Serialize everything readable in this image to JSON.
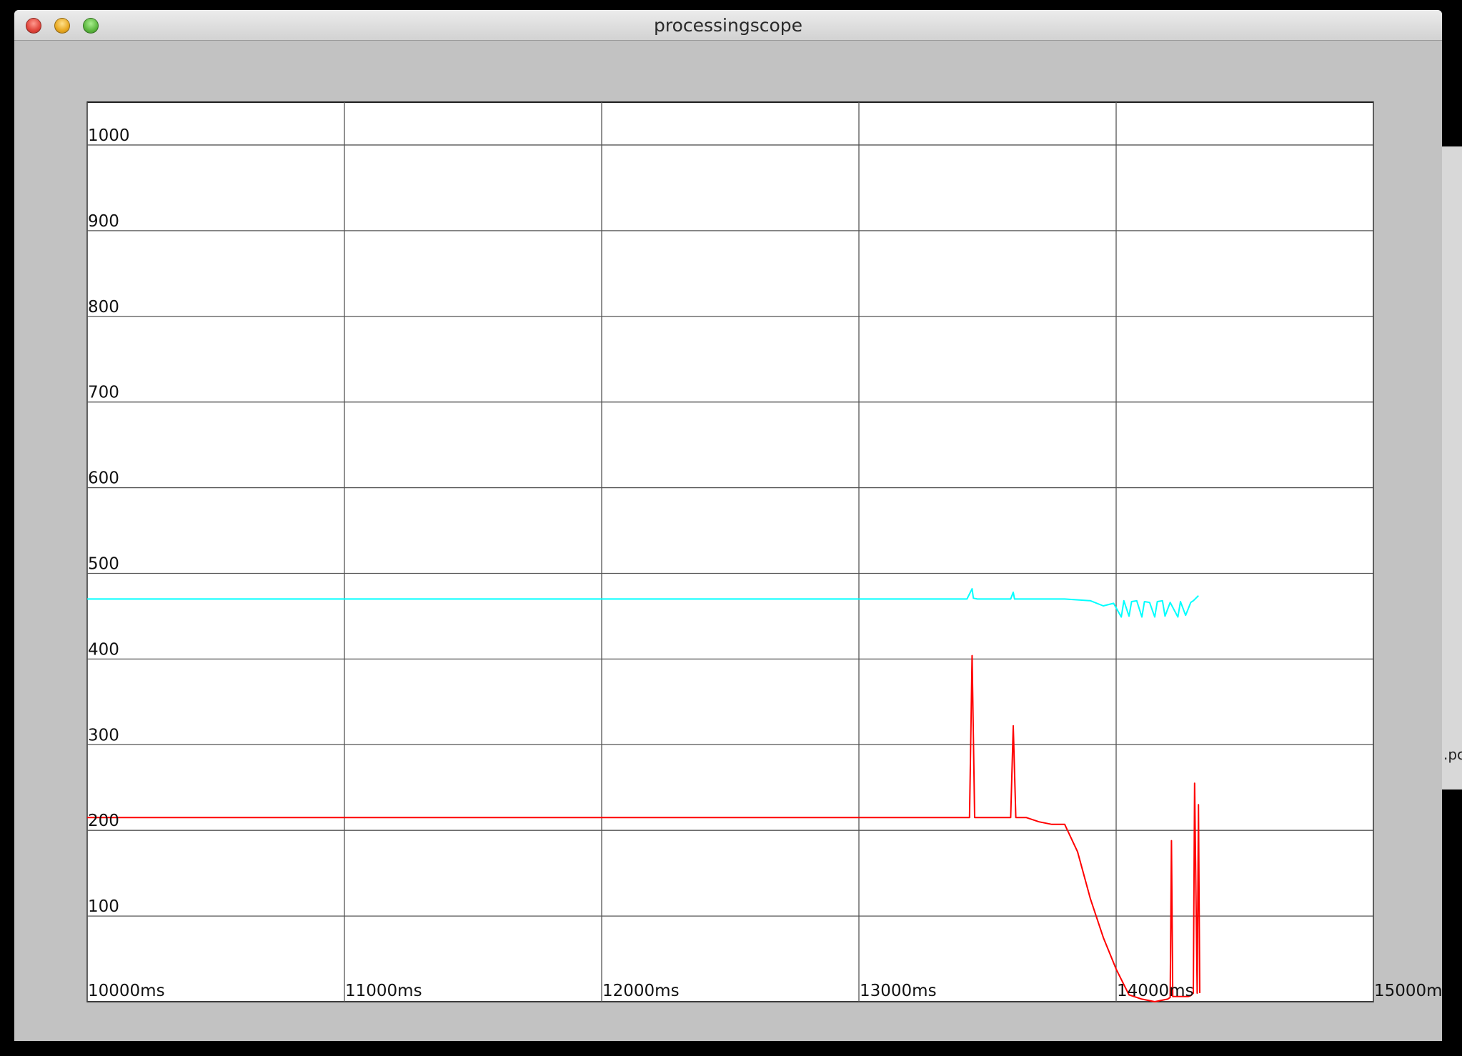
{
  "window": {
    "title": "processingscope"
  },
  "side_fragment": ".pc",
  "chart_data": {
    "type": "line",
    "title": "",
    "xlabel": "",
    "ylabel": "",
    "xlim": [
      10000,
      15000
    ],
    "ylim": [
      0,
      1050
    ],
    "grid": true,
    "legend": "none",
    "x_tick_labels": [
      "10000ms",
      "11000ms",
      "12000ms",
      "13000ms",
      "14000ms",
      "15000ms"
    ],
    "y_tick_labels": [
      "100",
      "200",
      "300",
      "400",
      "500",
      "600",
      "700",
      "800",
      "900",
      "1000"
    ],
    "x_ticks": [
      10000,
      11000,
      12000,
      13000,
      14000,
      15000
    ],
    "y_ticks": [
      100,
      200,
      300,
      400,
      500,
      600,
      700,
      800,
      900,
      1000
    ],
    "series": [
      {
        "color": "#00ffff",
        "x": [
          10000,
          10500,
          11000,
          11500,
          12000,
          12500,
          13000,
          13420,
          13440,
          13445,
          13460,
          13590,
          13600,
          13605,
          13620,
          13800,
          13900,
          13950,
          13990,
          14020,
          14030,
          14050,
          14060,
          14080,
          14100,
          14110,
          14130,
          14150,
          14160,
          14180,
          14190,
          14210,
          14240,
          14250,
          14270,
          14290,
          14300,
          14320
        ],
        "y": [
          470,
          470,
          470,
          470,
          470,
          470,
          470,
          470,
          482,
          471,
          470,
          470,
          478,
          470,
          470,
          470,
          468,
          462,
          465,
          449,
          468,
          450,
          467,
          468,
          449,
          467,
          466,
          449,
          467,
          468,
          450,
          466,
          449,
          467,
          451,
          466,
          468,
          474
        ]
      },
      {
        "color": "#ff0000",
        "x": [
          10000,
          10500,
          11000,
          11500,
          12000,
          12500,
          13000,
          13400,
          13430,
          13440,
          13450,
          13590,
          13600,
          13610,
          13650,
          13700,
          13750,
          13800,
          13850,
          13900,
          13950,
          14000,
          14050,
          14100,
          14150,
          14200,
          14210,
          14215,
          14220,
          14260,
          14280,
          14290,
          14300,
          14305,
          14315,
          14320,
          14325
        ],
        "y": [
          215,
          215,
          215,
          215,
          215,
          215,
          215,
          215,
          215,
          404,
          215,
          215,
          322,
          215,
          215,
          210,
          207,
          207,
          175,
          120,
          75,
          38,
          8,
          3,
          0,
          3,
          5,
          188,
          6,
          6,
          6,
          7,
          10,
          255,
          10,
          230,
          10
        ]
      }
    ]
  }
}
